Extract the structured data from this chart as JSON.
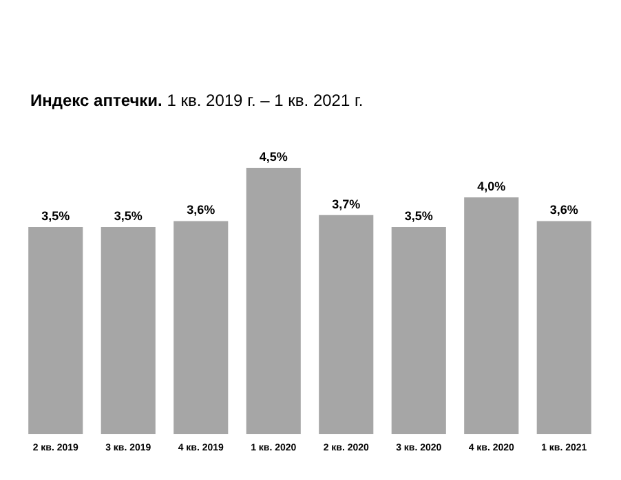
{
  "chart_data": {
    "type": "bar",
    "title": "Индекс аптечки.",
    "subtitle": "1 кв. 2019 г. – 1 кв. 2021 г.",
    "categories": [
      "2 кв. 2019",
      "3 кв. 2019",
      "4 кв. 2019",
      "1 кв. 2020",
      "2 кв. 2020",
      "3 кв. 2020",
      "4 кв. 2020",
      "1 кв. 2021"
    ],
    "values": [
      3.5,
      3.5,
      3.6,
      4.5,
      3.7,
      3.5,
      4.0,
      3.6
    ],
    "value_labels": [
      "3,5%",
      "3,5%",
      "3,6%",
      "4,5%",
      "3,7%",
      "3,5%",
      "4,0%",
      "3,6%"
    ],
    "color": "#a6a6a6",
    "grid": false,
    "legend": false
  }
}
